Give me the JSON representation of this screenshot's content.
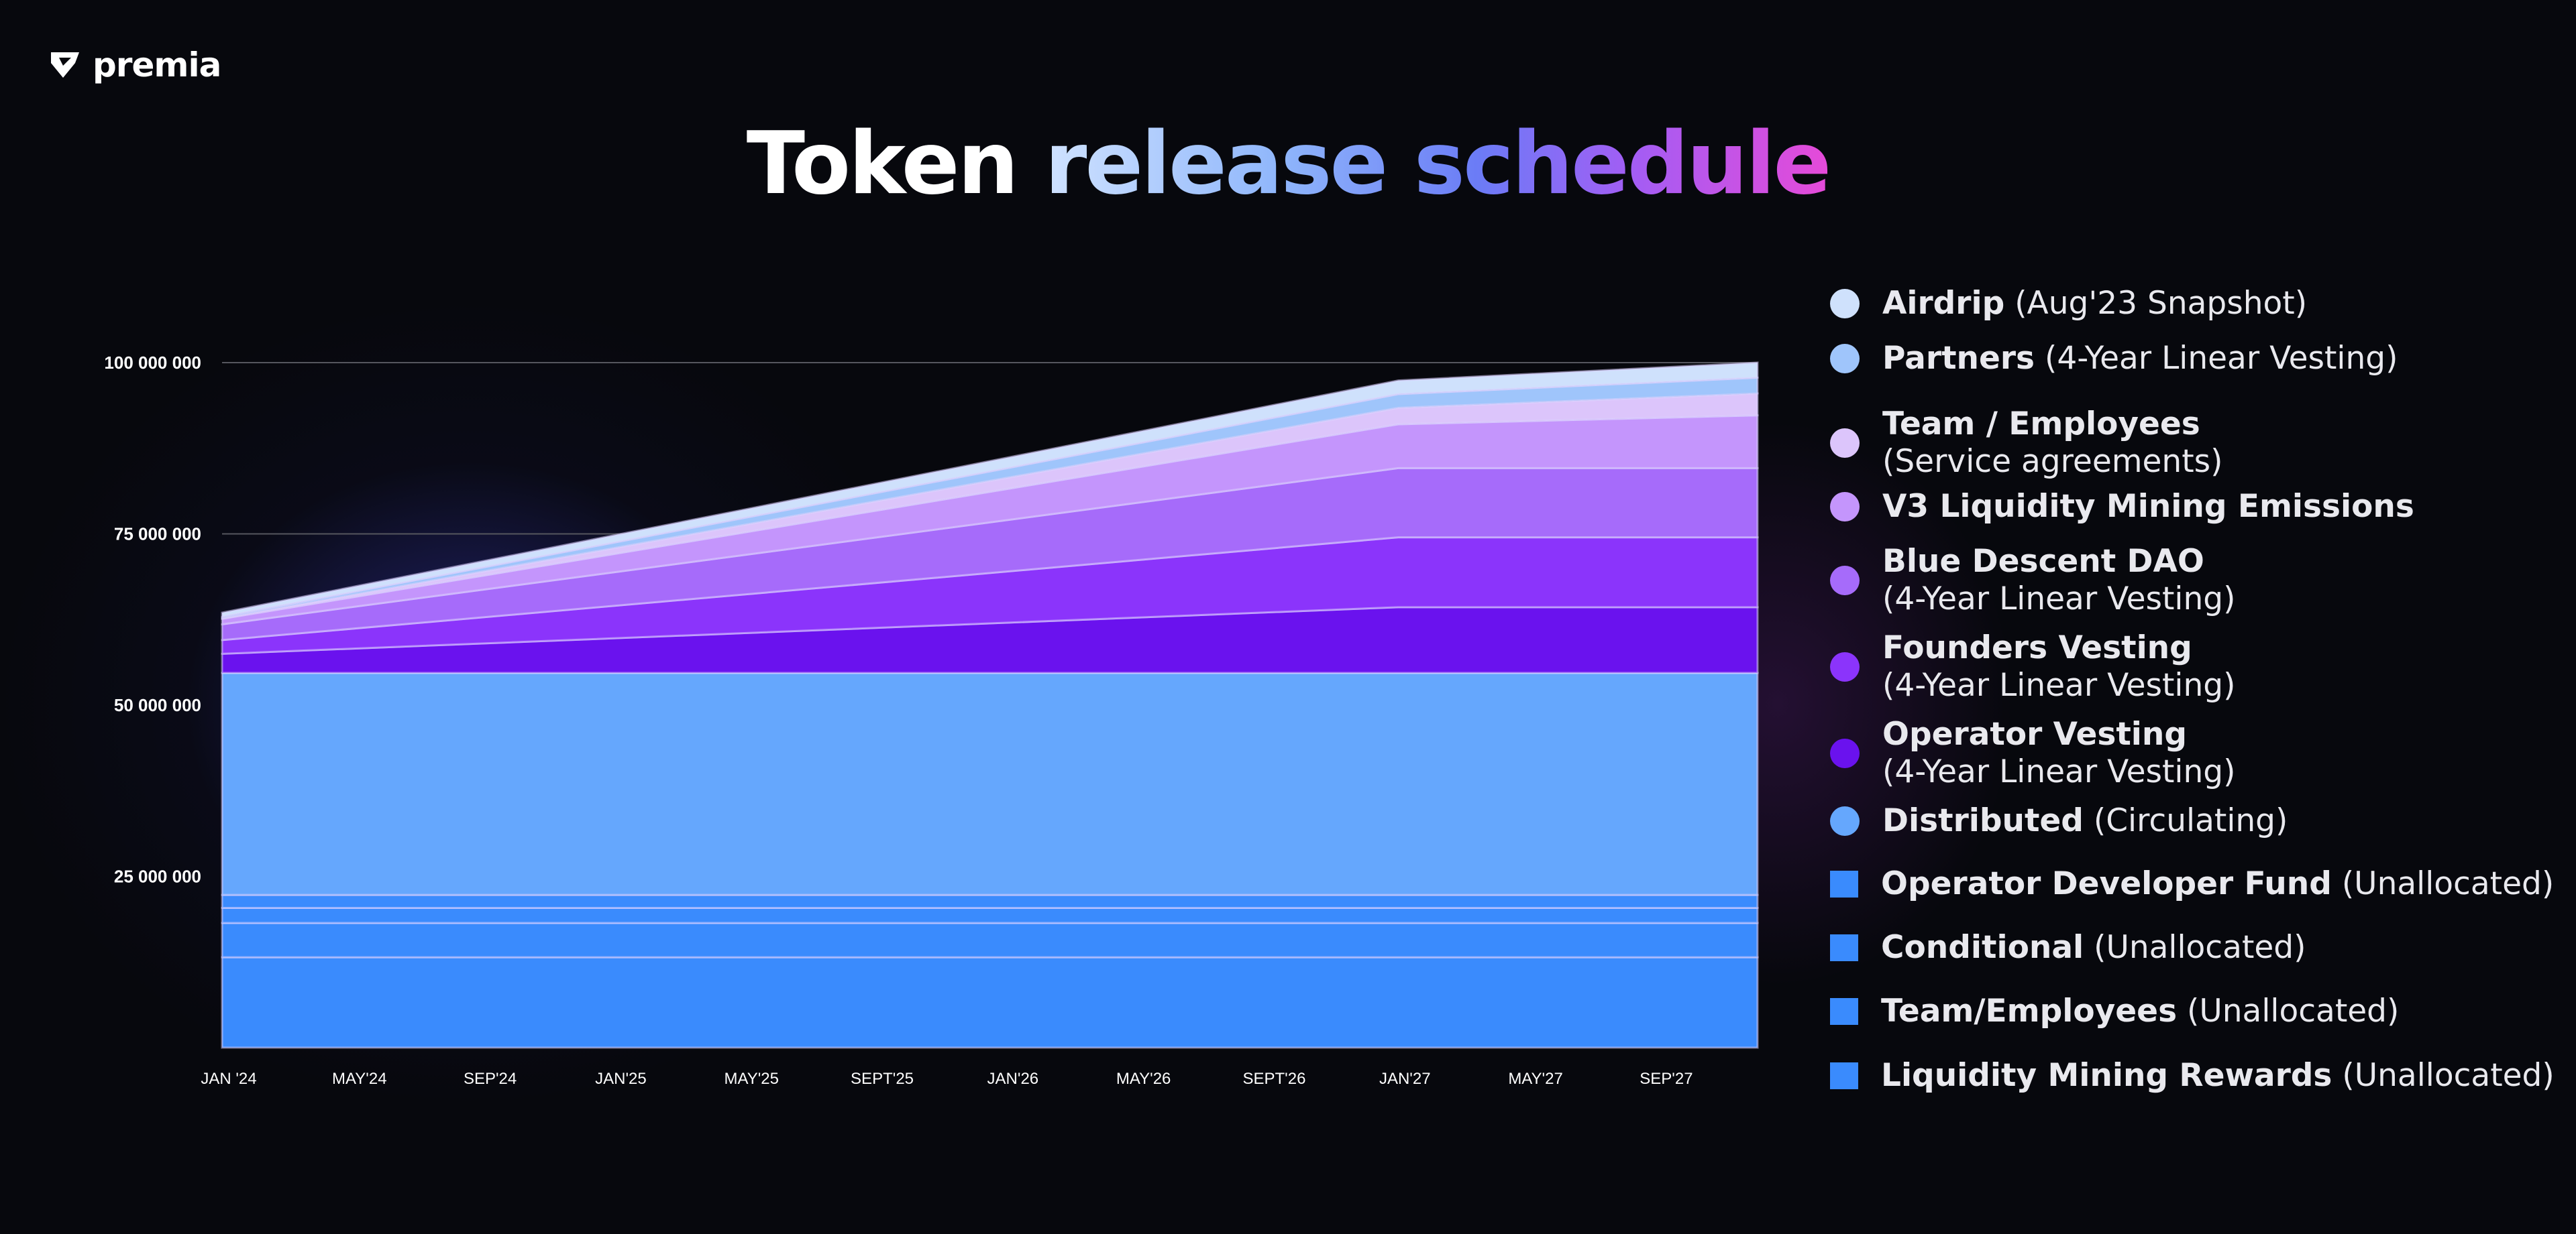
{
  "brand": {
    "name": "premia"
  },
  "title": {
    "part1": "Token",
    "part2": "release schedule"
  },
  "chart_data": {
    "type": "area",
    "stacked": true,
    "title": "Token release schedule",
    "xlabel": "",
    "ylabel": "",
    "xlim": [
      0,
      47
    ],
    "ylim": [
      0,
      100000000
    ],
    "grid": true,
    "legend_placement": "right",
    "x_ticks": [
      {
        "m": 0,
        "label": "JAN '24"
      },
      {
        "m": 4,
        "label": "MAY'24"
      },
      {
        "m": 8,
        "label": "SEP'24"
      },
      {
        "m": 12,
        "label": "JAN'25"
      },
      {
        "m": 16,
        "label": "MAY'25"
      },
      {
        "m": 20,
        "label": "SEPT'25"
      },
      {
        "m": 24,
        "label": "JAN'26"
      },
      {
        "m": 28,
        "label": "MAY'26"
      },
      {
        "m": 32,
        "label": "SEPT'26"
      },
      {
        "m": 36,
        "label": "JAN'27"
      },
      {
        "m": 40,
        "label": "MAY'27"
      },
      {
        "m": 44,
        "label": "SEP'27"
      }
    ],
    "y_ticks": [
      {
        "v": 25000000,
        "label": "25 000 000"
      },
      {
        "v": 50000000,
        "label": "50 000 000"
      },
      {
        "v": 75000000,
        "label": "75 000 000"
      },
      {
        "v": 100000000,
        "label": "100 000 000"
      }
    ],
    "x": [
      0,
      36,
      47
    ],
    "series": [
      {
        "name": "Liquidity Mining Rewards",
        "note": "(Unallocated)",
        "color": "#3a8bfd",
        "marker": "square",
        "values": [
          13200000,
          13200000,
          13200000
        ]
      },
      {
        "name": "Team/Employees",
        "note": "(Unallocated)",
        "color": "#3a8bfd",
        "marker": "square",
        "values": [
          5000000,
          5000000,
          5000000
        ]
      },
      {
        "name": "Conditional",
        "note": "(Unallocated)",
        "color": "#3a8bfd",
        "marker": "square",
        "values": [
          2200000,
          2200000,
          2200000
        ]
      },
      {
        "name": "Operator Developer Fund",
        "note": "(Unallocated)",
        "color": "#3a8bfd",
        "marker": "square",
        "values": [
          1900000,
          1900000,
          1900000
        ]
      },
      {
        "name": "Distributed",
        "note": "(Circulating)",
        "color": "#65a7fd",
        "marker": "circle",
        "values": [
          32400000,
          32400000,
          32400000
        ]
      },
      {
        "name": "Operator Vesting",
        "note": "(4-Year Linear Vesting)",
        "color": "#6a12ee",
        "marker": "circle",
        "values": [
          2800000,
          9600000,
          9600000
        ]
      },
      {
        "name": "Founders Vesting",
        "note": "(4-Year Linear Vesting)",
        "color": "#8b34fb",
        "marker": "circle",
        "values": [
          2000000,
          10200000,
          10200000
        ]
      },
      {
        "name": "Blue Descent DAO",
        "note": "(4-Year Linear Vesting)",
        "color": "#a66bfa",
        "marker": "circle",
        "values": [
          2300000,
          10100000,
          10100000
        ]
      },
      {
        "name": "V3 Liquidity Mining Emissions",
        "note": "",
        "color": "#c495fc",
        "marker": "circle",
        "values": [
          800000,
          6400000,
          7700000
        ]
      },
      {
        "name": "Team / Employees",
        "note": "(Service agreements)",
        "color": "#dcc5fb",
        "marker": "circle",
        "values": [
          100000,
          2400000,
          3200000
        ]
      },
      {
        "name": "Partners",
        "note": "(4-Year Linear Vesting)",
        "color": "#9fc5fb",
        "marker": "circle",
        "values": [
          200000,
          2000000,
          2300000
        ]
      },
      {
        "name": "Airdrip",
        "note": "(Aug'23 Snapshot)",
        "color": "#cfe1fc",
        "marker": "circle",
        "values": [
          600000,
          2000000,
          2200000
        ]
      }
    ]
  }
}
